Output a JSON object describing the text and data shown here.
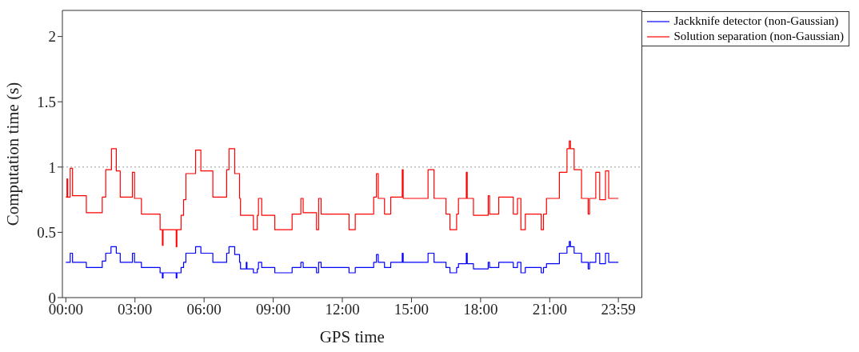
{
  "chart_data": {
    "type": "step",
    "xlabel": "GPS time",
    "ylabel": "Computation time (s)",
    "xlim": [
      -0.15,
      25
    ],
    "ylim": [
      0,
      2.2
    ],
    "xticks": [
      {
        "value": 0,
        "label": "00:00"
      },
      {
        "value": 3,
        "label": "03:00"
      },
      {
        "value": 6,
        "label": "06:00"
      },
      {
        "value": 9,
        "label": "09:00"
      },
      {
        "value": 12,
        "label": "12:00"
      },
      {
        "value": 15,
        "label": "15:00"
      },
      {
        "value": 18,
        "label": "18:00"
      },
      {
        "value": 21,
        "label": "21:00"
      },
      {
        "value": 23.98,
        "label": "23:59"
      }
    ],
    "yticks": [
      0,
      0.5,
      1,
      1.5,
      2
    ],
    "legend": "top right",
    "grid": false,
    "marker": "none",
    "line_style": "solid",
    "ref_lines": [
      {
        "axis": "y",
        "value": 1,
        "color": "#999999",
        "line_style": "dotted"
      }
    ],
    "series": [
      {
        "name": "Jackknife detector (non-Gaussian)",
        "color": "#0000ff",
        "x": [
          0,
          0.19,
          0.29,
          0.89,
          1.58,
          1.73,
          1.96,
          2.19,
          2.36,
          2.89,
          2.98,
          3.28,
          4.09,
          4.19,
          4.22,
          4.79,
          4.82,
          5.0,
          5.11,
          5.21,
          5.63,
          5.86,
          6.38,
          6.98,
          7.08,
          7.33,
          7.54,
          7.58,
          7.83,
          7.86,
          8.14,
          8.31,
          8.36,
          8.5,
          9.07,
          9.82,
          10.2,
          10.3,
          10.88,
          10.97,
          11.08,
          12.29,
          12.56,
          13.36,
          13.48,
          13.56,
          13.83,
          14.1,
          14.6,
          14.64,
          15.72,
          15.98,
          16.5,
          16.67,
          16.96,
          17.04,
          17.38,
          17.42,
          17.69,
          18.33,
          18.39,
          18.79,
          19.42,
          19.6,
          19.75,
          19.94,
          20.63,
          20.73,
          20.86,
          21.42,
          21.75,
          21.85,
          21.9,
          22.06,
          22.38,
          22.67,
          22.73,
          23.0,
          23.17,
          23.42,
          23.56,
          23.98
        ],
        "values": [
          0.27,
          0.34,
          0.27,
          0.23,
          0.28,
          0.34,
          0.39,
          0.34,
          0.27,
          0.34,
          0.27,
          0.23,
          0.19,
          0.15,
          0.19,
          0.15,
          0.19,
          0.23,
          0.27,
          0.34,
          0.39,
          0.34,
          0.27,
          0.34,
          0.39,
          0.33,
          0.27,
          0.22,
          0.27,
          0.22,
          0.19,
          0.22,
          0.27,
          0.23,
          0.19,
          0.23,
          0.27,
          0.23,
          0.19,
          0.27,
          0.23,
          0.19,
          0.23,
          0.27,
          0.33,
          0.27,
          0.23,
          0.27,
          0.34,
          0.27,
          0.34,
          0.27,
          0.23,
          0.19,
          0.23,
          0.26,
          0.34,
          0.26,
          0.22,
          0.27,
          0.23,
          0.27,
          0.23,
          0.27,
          0.19,
          0.23,
          0.19,
          0.23,
          0.26,
          0.34,
          0.39,
          0.43,
          0.39,
          0.34,
          0.27,
          0.22,
          0.27,
          0.34,
          0.26,
          0.34,
          0.27,
          0.27
        ]
      },
      {
        "name": "Solution separation (non-Gaussian)",
        "color": "#ff0000",
        "x": [
          0,
          0.05,
          0.08,
          0.19,
          0.29,
          0.89,
          1.58,
          1.73,
          1.98,
          2.19,
          2.36,
          2.89,
          2.98,
          3.28,
          4.09,
          4.19,
          4.22,
          4.79,
          4.82,
          5.0,
          5.11,
          5.21,
          5.63,
          5.86,
          6.38,
          6.98,
          7.08,
          7.33,
          7.54,
          7.58,
          8.14,
          8.31,
          8.36,
          8.5,
          9.07,
          9.82,
          10.2,
          10.3,
          10.88,
          10.97,
          11.08,
          12.29,
          12.56,
          13.36,
          13.48,
          13.56,
          13.83,
          14.1,
          14.6,
          14.64,
          15.72,
          15.98,
          16.5,
          16.67,
          16.96,
          17.04,
          17.38,
          17.42,
          17.69,
          18.33,
          18.39,
          18.79,
          19.42,
          19.6,
          19.75,
          19.94,
          20.63,
          20.73,
          20.86,
          21.42,
          21.75,
          21.85,
          21.9,
          22.06,
          22.38,
          22.67,
          22.73,
          23.0,
          23.17,
          23.42,
          23.56,
          23.98
        ],
        "values": [
          0.77,
          0.91,
          0.77,
          0.99,
          0.78,
          0.65,
          0.77,
          0.98,
          1.14,
          0.97,
          0.77,
          0.96,
          0.76,
          0.64,
          0.52,
          0.4,
          0.52,
          0.39,
          0.52,
          0.63,
          0.75,
          0.95,
          1.13,
          0.97,
          0.77,
          0.98,
          1.14,
          0.95,
          0.76,
          0.63,
          0.52,
          0.63,
          0.76,
          0.63,
          0.52,
          0.64,
          0.76,
          0.65,
          0.52,
          0.76,
          0.64,
          0.52,
          0.64,
          0.77,
          0.95,
          0.76,
          0.64,
          0.77,
          0.98,
          0.76,
          0.98,
          0.76,
          0.64,
          0.52,
          0.64,
          0.76,
          0.96,
          0.76,
          0.63,
          0.78,
          0.64,
          0.77,
          0.64,
          0.76,
          0.52,
          0.64,
          0.52,
          0.64,
          0.76,
          0.96,
          1.14,
          1.2,
          1.14,
          0.98,
          0.76,
          0.64,
          0.76,
          0.96,
          0.75,
          0.97,
          0.76,
          0.76
        ]
      }
    ]
  }
}
